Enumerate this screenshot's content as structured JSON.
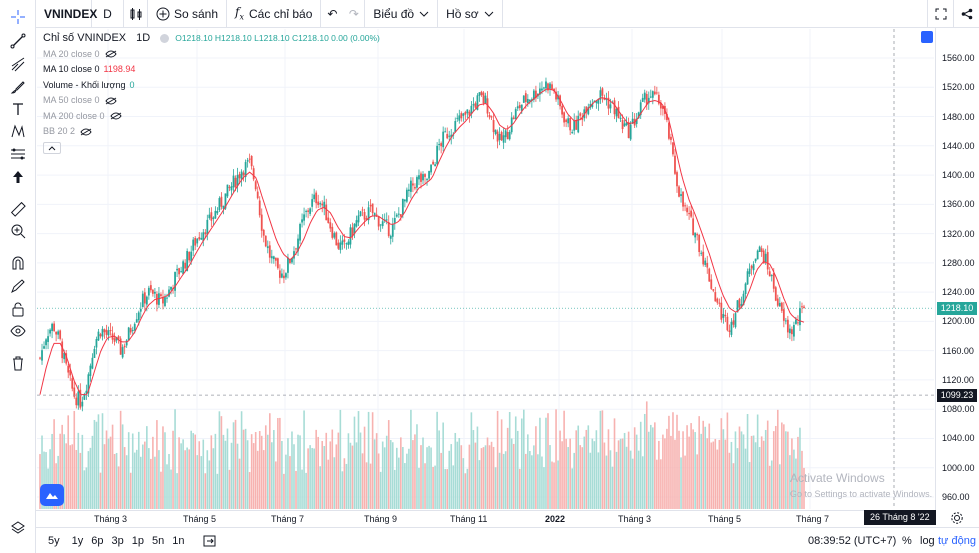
{
  "toolbar": {
    "symbol": "VNINDEX",
    "interval": "D",
    "compare_label": "So sánh",
    "indicators_label": "Các chỉ báo",
    "chart_type_label": "Biểu đồ",
    "profile_label": "Hồ sơ"
  },
  "legend": {
    "title": "Chỉ số VNINDEX",
    "interval": "1D",
    "ohlc": "O1218.10  H1218.10  L1218.10  C1218.10  0.00 (0.00%)",
    "ma20": "MA 20 close 0",
    "ma10": "MA 10 close 0",
    "ma10_value": "1198.94",
    "volume": "Volume - Khối lượng",
    "volume_value": "0",
    "ma50": "MA 50 close 0",
    "ma200": "MA 200 close 0",
    "bb": "BB 20 2"
  },
  "price_scale": {
    "labels": [
      "1560.00",
      "1520.00",
      "1480.00",
      "1440.00",
      "1400.00",
      "1360.00",
      "1320.00",
      "1280.00",
      "1240.00",
      "1200.00",
      "1160.00",
      "1120.00",
      "1080.00",
      "1040.00",
      "1000.00",
      "960.00"
    ],
    "current_price": "1218.10",
    "crosshair_price": "1099.23"
  },
  "time_axis": {
    "labels": [
      "Tháng 3",
      "Tháng 5",
      "Tháng 7",
      "Tháng 9",
      "Tháng 11",
      "2022",
      "Tháng 3",
      "Tháng 5",
      "Tháng 7"
    ],
    "crosshair_date": "26 Tháng 8 '22"
  },
  "bottom": {
    "ranges": [
      "5y",
      "1y",
      "6p",
      "3p",
      "1p",
      "5n",
      "1n"
    ],
    "clock": "08:39:52 (UTC+7)",
    "percent": "%",
    "log": "log",
    "auto": "tự động"
  },
  "watermark": {
    "line1": "Activate Windows",
    "line2": "Go to Settings to activate Windows."
  },
  "colors": {
    "up": "#26a69a",
    "down": "#ef5350",
    "ma10": "#f23645",
    "accent": "#2962ff"
  },
  "chart_data": {
    "type": "candlestick",
    "title": "Chỉ số VNINDEX 1D",
    "ylim": [
      940,
      1580
    ],
    "x_labels": [
      "Tháng 3",
      "Tháng 5",
      "Tháng 7",
      "Tháng 9",
      "Tháng 11",
      "2022",
      "Tháng 3",
      "Tháng 5",
      "Tháng 7"
    ],
    "close_path": [
      1150,
      1185,
      1195,
      1170,
      1130,
      1100,
      1090,
      1120,
      1170,
      1190,
      1180,
      1175,
      1160,
      1180,
      1205,
      1225,
      1240,
      1235,
      1225,
      1240,
      1260,
      1275,
      1290,
      1310,
      1325,
      1335,
      1350,
      1365,
      1380,
      1395,
      1410,
      1415,
      1385,
      1320,
      1290,
      1270,
      1265,
      1285,
      1310,
      1340,
      1360,
      1370,
      1355,
      1330,
      1305,
      1300,
      1320,
      1340,
      1345,
      1350,
      1340,
      1330,
      1325,
      1345,
      1365,
      1385,
      1395,
      1390,
      1410,
      1440,
      1455,
      1465,
      1475,
      1480,
      1495,
      1505,
      1500,
      1470,
      1445,
      1455,
      1480,
      1495,
      1505,
      1510,
      1520,
      1525,
      1515,
      1490,
      1470,
      1465,
      1480,
      1500,
      1505,
      1510,
      1500,
      1490,
      1470,
      1460,
      1475,
      1495,
      1510,
      1505,
      1495,
      1455,
      1400,
      1360,
      1340,
      1320,
      1290,
      1260,
      1230,
      1205,
      1195,
      1215,
      1240,
      1270,
      1300,
      1290,
      1265,
      1230,
      1200,
      1185,
      1200,
      1218.1
    ],
    "ma10_path": [
      1100,
      1140,
      1170,
      1170,
      1150,
      1120,
      1100,
      1100,
      1130,
      1160,
      1178,
      1180,
      1172,
      1172,
      1185,
      1205,
      1222,
      1230,
      1232,
      1236,
      1248,
      1262,
      1275,
      1292,
      1308,
      1322,
      1336,
      1350,
      1366,
      1382,
      1396,
      1404,
      1396,
      1366,
      1338,
      1310,
      1292,
      1284,
      1294,
      1312,
      1335,
      1352,
      1356,
      1348,
      1330,
      1316,
      1314,
      1326,
      1336,
      1344,
      1344,
      1338,
      1332,
      1336,
      1350,
      1368,
      1382,
      1388,
      1396,
      1418,
      1438,
      1454,
      1465,
      1474,
      1486,
      1496,
      1498,
      1486,
      1468,
      1462,
      1470,
      1484,
      1496,
      1504,
      1512,
      1518,
      1516,
      1502,
      1484,
      1474,
      1476,
      1490,
      1500,
      1506,
      1504,
      1496,
      1482,
      1470,
      1472,
      1486,
      1500,
      1502,
      1498,
      1476,
      1436,
      1396,
      1366,
      1344,
      1318,
      1292,
      1262,
      1236,
      1218,
      1212,
      1222,
      1244,
      1270,
      1282,
      1278,
      1258,
      1232,
      1210,
      1202,
      1198.94
    ],
    "current_price": 1218.1,
    "crosshair_price": 1099.23,
    "volume": "bar series under price (relative, unlabeled)"
  }
}
